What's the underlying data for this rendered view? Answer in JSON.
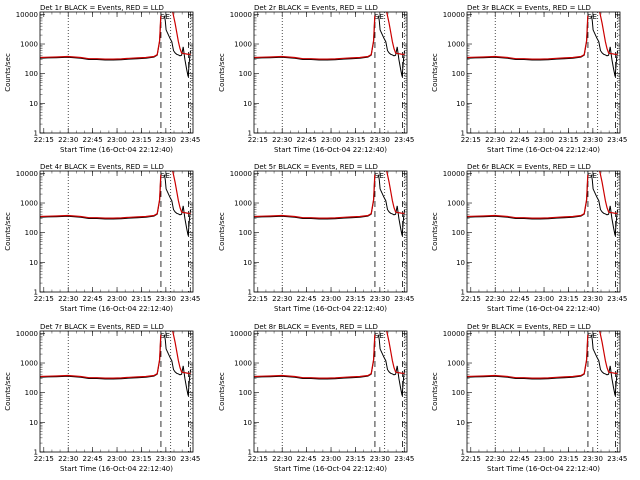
{
  "chart_data": [
    {
      "type": "line",
      "title": "Det 1r BLACK = Events, RED = LLD"
    },
    {
      "type": "line",
      "title": "Det 2r BLACK = Events, RED = LLD"
    },
    {
      "type": "line",
      "title": "Det 3r BLACK = Events, RED = LLD"
    },
    {
      "type": "line",
      "title": "Det 4r BLACK = Events, RED = LLD"
    },
    {
      "type": "line",
      "title": "Det 5r BLACK = Events, RED = LLD"
    },
    {
      "type": "line",
      "title": "Det 6r BLACK = Events, RED = LLD"
    },
    {
      "type": "line",
      "title": "Det 7r BLACK = Events, RED = LLD"
    },
    {
      "type": "line",
      "title": "Det 8r BLACK = Events, RED = LLD"
    },
    {
      "type": "line",
      "title": "Det 9r BLACK = Events, RED = LLD"
    }
  ],
  "shared_axes": {
    "xlabel": "Start Time (16-Oct-04 22:12:40)",
    "ylabel": "Counts/sec",
    "yscale": "log",
    "ylim": [
      1,
      12000
    ],
    "xlim_minutes_after_22_12_40": [
      0,
      94
    ],
    "x_tick_labels": [
      "22:15",
      "22:30",
      "22:45",
      "23:00",
      "23:15",
      "23:30",
      "23:45"
    ],
    "x_tick_values_minutes": [
      2.33,
      17.33,
      32.33,
      47.33,
      62.33,
      77.33,
      92.33
    ],
    "y_tick_labels": [
      "1",
      "10",
      "100",
      "1000",
      "10000"
    ],
    "y_tick_values": [
      1,
      10,
      100,
      1000,
      10000
    ],
    "marker_labels": [
      "S",
      "E"
    ],
    "marker_minutes": [
      75.3,
      78.5
    ],
    "dotted_lines_minutes": [
      17.33,
      80.3,
      92.33
    ],
    "dashed_lines_minutes": [
      74.3,
      91.3
    ],
    "series_colors": {
      "events": "#000000",
      "lld": "#cc0000"
    }
  },
  "series_events": {
    "x": [
      0,
      5,
      10,
      17,
      25,
      30,
      35,
      40,
      45,
      50,
      55,
      60,
      65,
      70,
      72,
      73.5,
      74.2
    ],
    "y": [
      330,
      340,
      345,
      360,
      330,
      300,
      300,
      290,
      290,
      295,
      310,
      320,
      330,
      360,
      420,
      1200,
      8000
    ]
  },
  "series_events_post": {
    "x": [
      76.5,
      77,
      77.5,
      80,
      81,
      82,
      83,
      84,
      85,
      86,
      87,
      88,
      89,
      90,
      91,
      92,
      92.5
    ],
    "y": [
      9000,
      6000,
      3000,
      1500,
      1200,
      600,
      500,
      450,
      430,
      400,
      420,
      800,
      300,
      150,
      80,
      350,
      600
    ]
  },
  "series_lld": {
    "x": [
      0,
      5,
      10,
      17,
      25,
      30,
      35,
      40,
      45,
      50,
      55,
      60,
      65,
      70,
      72,
      73.5,
      74.2
    ],
    "y": [
      350,
      360,
      365,
      380,
      350,
      320,
      320,
      310,
      310,
      315,
      330,
      340,
      350,
      380,
      440,
      1300,
      9000
    ]
  },
  "series_lld_post": {
    "x": [
      81.5,
      82,
      83,
      84,
      85,
      86,
      87,
      88,
      89,
      90,
      91,
      92,
      92.5
    ],
    "y": [
      12000,
      9000,
      5000,
      2500,
      1200,
      700,
      500,
      480,
      470,
      460,
      450,
      450,
      450
    ]
  }
}
